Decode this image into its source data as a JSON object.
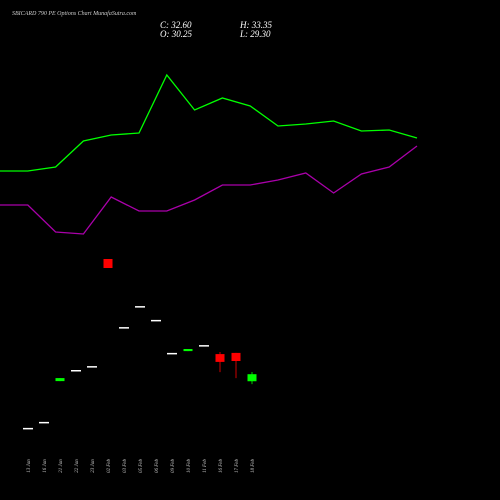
{
  "chart_data": [
    {
      "type": "candlestick",
      "title": "SBICARD 790 PE Options Chart MunafaSutra.com",
      "ohlc_labels": {
        "close": "C: 32.60",
        "high": "H: 33.35",
        "open": "O: 30.25",
        "low": "L: 29.30"
      },
      "categories": [
        "13 Jan",
        "16 Jan",
        "21 Jan",
        "22 Jan",
        "23 Jan",
        "02 Feb",
        "03 Feb",
        "05 Feb",
        "06 Feb",
        "09 Feb",
        "10 Feb",
        "11 Feb",
        "16 Feb",
        "17 Feb",
        "18 Feb"
      ],
      "open": [
        14.7,
        16.7,
        30.3,
        34.0,
        35.3,
        71.0,
        48.3,
        55.3,
        50.7,
        39.7,
        40.3,
        42.3,
        39.3,
        39.7,
        30.25
      ],
      "high": [
        14.7,
        16.7,
        31.3,
        34.0,
        35.3,
        71.0,
        48.3,
        55.3,
        50.7,
        39.7,
        41.0,
        42.3,
        40.0,
        39.7,
        33.35
      ],
      "low": [
        14.7,
        16.7,
        30.3,
        34.0,
        35.3,
        68.0,
        48.3,
        55.3,
        50.7,
        39.7,
        40.3,
        42.3,
        33.3,
        31.3,
        29.3
      ],
      "close": [
        14.7,
        16.7,
        31.3,
        34.0,
        35.3,
        68.0,
        48.3,
        55.3,
        50.7,
        39.7,
        41.0,
        42.3,
        36.7,
        37.0,
        32.6
      ],
      "ylim": [
        10,
        74
      ],
      "up_color": "#00ff00",
      "down_color": "#ff0000",
      "flat_color": "#ffffff"
    },
    {
      "type": "line",
      "ylim": [
        0,
        100
      ],
      "series": [
        {
          "color": "#00ff00",
          "values": [
            39.5,
            39.5,
            41.5,
            54.5,
            57.5,
            58.5,
            87.5,
            70,
            76,
            72,
            62,
            63,
            64.5,
            59.5,
            60,
            56
          ]
        },
        {
          "color": "#aa00aa",
          "values": [
            22.5,
            22.5,
            9,
            8,
            26.5,
            19.5,
            19.5,
            25,
            32.5,
            32.5,
            35,
            38.5,
            28.5,
            38,
            41.5,
            52
          ]
        }
      ]
    }
  ]
}
